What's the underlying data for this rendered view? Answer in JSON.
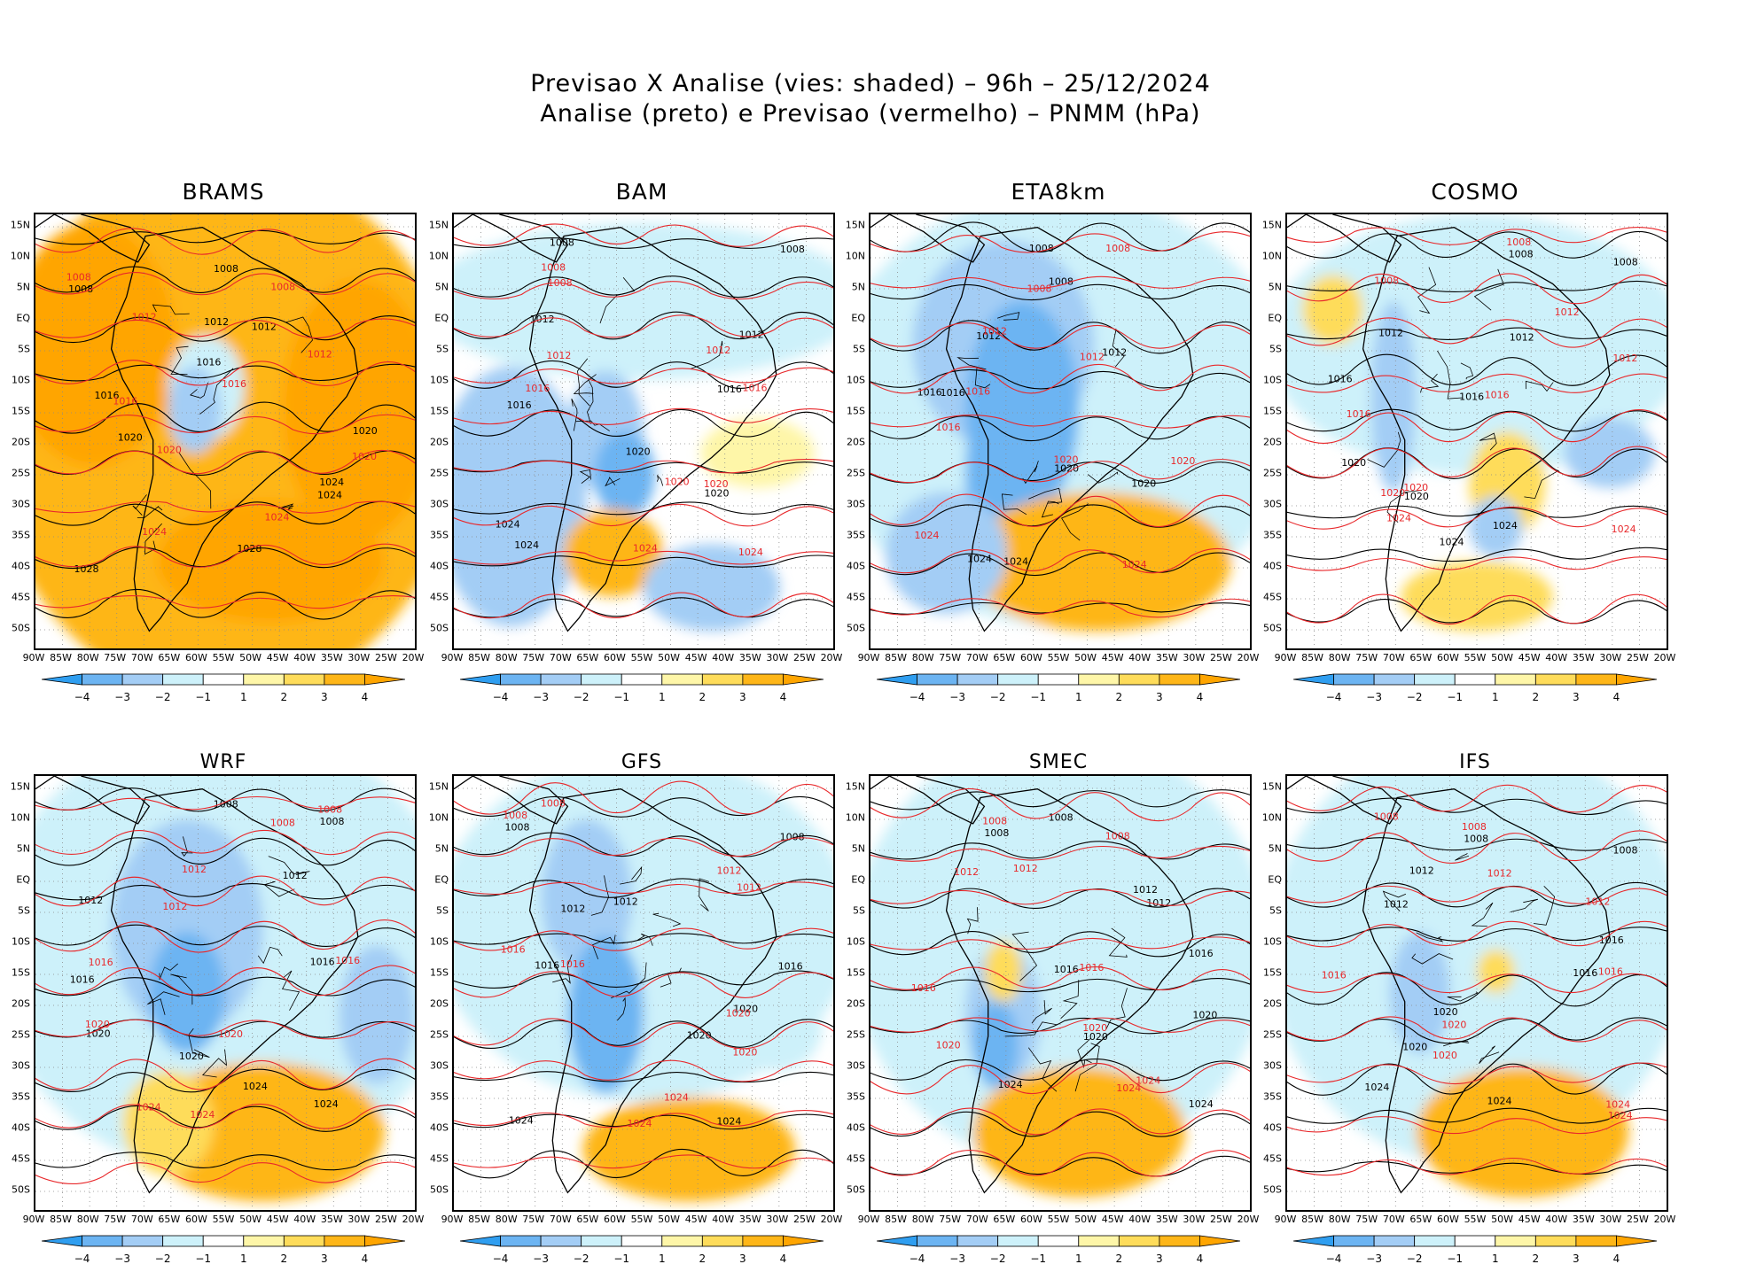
{
  "title": {
    "line1": "Previsao X Analise (vies: shaded) – 96h – 25/12/2024",
    "line2": "Analise (preto) e Previsao (vermelho) – PNMM (hPa)"
  },
  "lat_labels": [
    "15N",
    "10N",
    "5N",
    "EQ",
    "5S",
    "10S",
    "15S",
    "20S",
    "25S",
    "30S",
    "35S",
    "40S",
    "45S",
    "50S"
  ],
  "lon_labels": [
    "90W",
    "85W",
    "80W",
    "75W",
    "70W",
    "65W",
    "60W",
    "55W",
    "50W",
    "45W",
    "40W",
    "35W",
    "30W",
    "25W",
    "20W"
  ],
  "colorbar": {
    "ticks": [
      "−4",
      "−3",
      "−2",
      "−1",
      "1",
      "2",
      "3",
      "4"
    ],
    "colors": [
      "#2f9ef0",
      "#6cb4f2",
      "#a3cdf5",
      "#cdf1fa",
      "#ffffff",
      "#fef6a8",
      "#fedc5a",
      "#feb618",
      "#ffa500"
    ]
  },
  "line_colors": {
    "analysis": "#000000",
    "forecast": "#e8282b"
  },
  "panels": [
    {
      "name": "BRAMS",
      "isobars_black": [
        "1008",
        "1012",
        "1016",
        "1020",
        "1024",
        "1028"
      ],
      "isobars_red": [
        "1008",
        "1012",
        "1016",
        "1020",
        "1024"
      ]
    },
    {
      "name": "BAM",
      "isobars_black": [
        "1008",
        "1012",
        "1016",
        "1020",
        "1024"
      ],
      "isobars_red": [
        "1008",
        "1012",
        "1016",
        "1020",
        "1024"
      ]
    },
    {
      "name": "ETA8km",
      "isobars_black": [
        "1008",
        "1012",
        "1016",
        "1020",
        "1024"
      ],
      "isobars_red": [
        "1008",
        "1012",
        "1016",
        "1020",
        "1024"
      ]
    },
    {
      "name": "COSMO",
      "isobars_black": [
        "1008",
        "1012",
        "1016",
        "1020",
        "1024"
      ],
      "isobars_red": [
        "1008",
        "1012",
        "1016",
        "1020",
        "1024"
      ]
    },
    {
      "name": "WRF",
      "isobars_black": [
        "1008",
        "1012",
        "1016",
        "1020",
        "1024"
      ],
      "isobars_red": [
        "1008",
        "1012",
        "1016",
        "1020",
        "1024"
      ]
    },
    {
      "name": "GFS",
      "isobars_black": [
        "1008",
        "1012",
        "1016",
        "1020",
        "1024"
      ],
      "isobars_red": [
        "1008",
        "1012",
        "1016",
        "1020",
        "1024"
      ]
    },
    {
      "name": "SMEC",
      "isobars_black": [
        "1008",
        "1012",
        "1016",
        "1020",
        "1024"
      ],
      "isobars_red": [
        "1008",
        "1012",
        "1016",
        "1020",
        "1024"
      ]
    },
    {
      "name": "IFS",
      "isobars_black": [
        "1008",
        "1012",
        "1016",
        "1020",
        "1024"
      ],
      "isobars_red": [
        "1008",
        "1012",
        "1016",
        "1020",
        "1024"
      ]
    }
  ]
}
